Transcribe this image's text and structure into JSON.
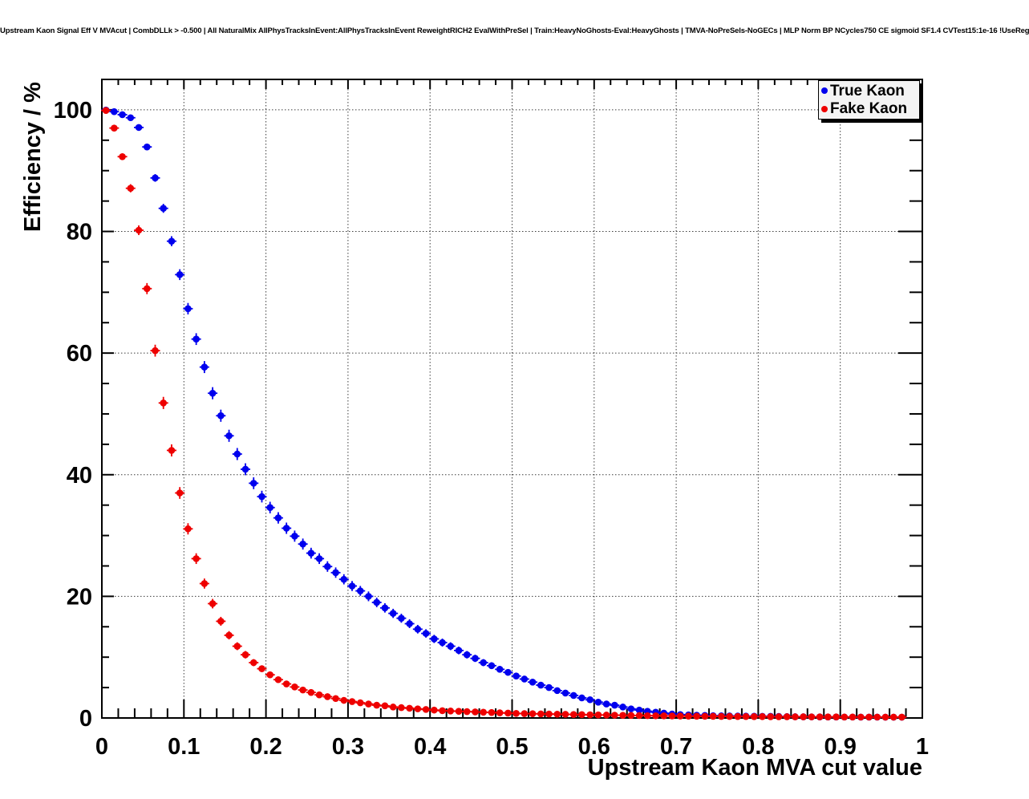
{
  "title": "Upstream Kaon Signal Eff V MVAcut | CombDLLk > -0.500 | All NaturalMix AllPhysTracksInEvent:AllPhysTracksInEvent ReweightRICH2 EvalWithPreSel | Train:HeavyNoGhosts-Eval:HeavyGhosts | TMVA-NoPreSels-NoGECs | MLP Norm BP NCycles750 CE sigmoid SF1.4 CVTest15:1e-16 !UseReg",
  "chart_data": {
    "type": "scatter",
    "title": "Upstream Kaon Signal Eff V MVAcut | CombDLLk > -0.500 | All NaturalMix AllPhysTracksInEvent:AllPhysTracksInEvent ReweightRICH2 EvalWithPreSel | Train:HeavyNoGhosts-Eval:HeavyGhosts | TMVA-NoPreSels-NoGECs | MLP Norm BP NCycles750 CE sigmoid SF1.4 CVTest15:1e-16 !UseReg",
    "xlabel": "Upstream Kaon MVA cut value",
    "ylabel": "Efficiency / %",
    "xlim": [
      0,
      1
    ],
    "ylim": [
      0,
      105
    ],
    "x_ticks": [
      0,
      0.1,
      0.2,
      0.3,
      0.4,
      0.5,
      0.6,
      0.7,
      0.8,
      0.9,
      1
    ],
    "x_tick_labels": [
      "0",
      "0.1",
      "0.2",
      "0.3",
      "0.4",
      "0.5",
      "0.6",
      "0.7",
      "0.8",
      "0.9",
      "1"
    ],
    "x_minor_step": 0.02,
    "y_ticks": [
      0,
      20,
      40,
      60,
      80,
      100
    ],
    "y_tick_labels": [
      "0",
      "20",
      "40",
      "60",
      "80",
      "100"
    ],
    "y_minor_step": 5,
    "grid": true,
    "grid_style": "dotted",
    "legend_position": "top-right",
    "x_error": 0.005,
    "series": [
      {
        "name": "True Kaon",
        "color": "#0000ee",
        "marker": "filled-circle",
        "x": [
          0.005,
          0.015,
          0.025,
          0.035,
          0.045,
          0.055,
          0.065,
          0.075,
          0.085,
          0.095,
          0.105,
          0.115,
          0.125,
          0.135,
          0.145,
          0.155,
          0.165,
          0.175,
          0.185,
          0.195,
          0.205,
          0.215,
          0.225,
          0.235,
          0.245,
          0.255,
          0.265,
          0.275,
          0.285,
          0.295,
          0.305,
          0.315,
          0.325,
          0.335,
          0.345,
          0.355,
          0.365,
          0.375,
          0.385,
          0.395,
          0.405,
          0.415,
          0.425,
          0.435,
          0.445,
          0.455,
          0.465,
          0.475,
          0.485,
          0.495,
          0.505,
          0.515,
          0.525,
          0.535,
          0.545,
          0.555,
          0.565,
          0.575,
          0.585,
          0.595,
          0.605,
          0.615,
          0.625,
          0.635,
          0.645,
          0.655,
          0.665,
          0.675,
          0.685,
          0.695,
          0.705,
          0.715,
          0.725,
          0.735,
          0.745,
          0.755,
          0.765,
          0.775,
          0.785,
          0.795,
          0.805,
          0.815,
          0.825,
          0.835,
          0.845,
          0.855,
          0.865,
          0.875,
          0.885,
          0.895,
          0.905,
          0.915,
          0.925,
          0.935,
          0.945,
          0.955,
          0.965,
          0.975
        ],
        "y": [
          99.97,
          99.7,
          99.2,
          98.7,
          97.1,
          93.9,
          88.8,
          83.8,
          78.4,
          72.9,
          67.3,
          62.3,
          57.7,
          53.4,
          49.7,
          46.4,
          43.4,
          40.9,
          38.6,
          36.4,
          34.6,
          32.9,
          31.2,
          29.9,
          28.6,
          27.1,
          26.2,
          24.9,
          23.9,
          22.8,
          21.7,
          20.9,
          20.0,
          19.0,
          18.1,
          17.2,
          16.4,
          15.5,
          14.6,
          13.9,
          13.0,
          12.4,
          11.8,
          11.1,
          10.4,
          9.8,
          9.1,
          8.6,
          8.0,
          7.5,
          6.9,
          6.4,
          5.9,
          5.4,
          5.0,
          4.5,
          4.1,
          3.7,
          3.3,
          3.0,
          2.6,
          2.3,
          2.1,
          1.8,
          1.5,
          1.3,
          1.1,
          0.95,
          0.8,
          0.65,
          0.55,
          0.5,
          0.46,
          0.42,
          0.38,
          0.36,
          0.34,
          0.32,
          0.3,
          0.29,
          0.28,
          0.27,
          0.26,
          0.22,
          0.2,
          0.19,
          0.18,
          0.17,
          0.16,
          0.16,
          0.15,
          0.15,
          0.14,
          0.14,
          0.14,
          0.13,
          0.13,
          0.13
        ]
      },
      {
        "name": "Fake Kaon",
        "color": "#ee0000",
        "marker": "filled-circle",
        "x": [
          0.005,
          0.015,
          0.025,
          0.035,
          0.045,
          0.055,
          0.065,
          0.075,
          0.085,
          0.095,
          0.105,
          0.115,
          0.125,
          0.135,
          0.145,
          0.155,
          0.165,
          0.175,
          0.185,
          0.195,
          0.205,
          0.215,
          0.225,
          0.235,
          0.245,
          0.255,
          0.265,
          0.275,
          0.285,
          0.295,
          0.305,
          0.315,
          0.325,
          0.335,
          0.345,
          0.355,
          0.365,
          0.375,
          0.385,
          0.395,
          0.405,
          0.415,
          0.425,
          0.435,
          0.445,
          0.455,
          0.465,
          0.475,
          0.485,
          0.495,
          0.505,
          0.515,
          0.525,
          0.535,
          0.545,
          0.555,
          0.565,
          0.575,
          0.585,
          0.595,
          0.605,
          0.615,
          0.625,
          0.635,
          0.645,
          0.655,
          0.665,
          0.675,
          0.685,
          0.695,
          0.705,
          0.715,
          0.725,
          0.735,
          0.745,
          0.755,
          0.765,
          0.775,
          0.785,
          0.795,
          0.805,
          0.815,
          0.825,
          0.835,
          0.845,
          0.855,
          0.865,
          0.875,
          0.885,
          0.895,
          0.905,
          0.915,
          0.925,
          0.935,
          0.945,
          0.955,
          0.965,
          0.975
        ],
        "y": [
          99.9,
          97.0,
          92.3,
          87.1,
          80.2,
          70.6,
          60.4,
          51.8,
          44.0,
          37.0,
          31.1,
          26.2,
          22.1,
          18.8,
          15.9,
          13.6,
          11.8,
          10.4,
          9.1,
          8.1,
          7.1,
          6.3,
          5.6,
          5.1,
          4.6,
          4.2,
          3.8,
          3.5,
          3.2,
          2.9,
          2.7,
          2.5,
          2.3,
          2.1,
          2.0,
          1.8,
          1.7,
          1.6,
          1.5,
          1.4,
          1.3,
          1.2,
          1.15,
          1.1,
          1.05,
          1.0,
          0.95,
          0.9,
          0.85,
          0.8,
          0.75,
          0.72,
          0.7,
          0.67,
          0.65,
          0.62,
          0.6,
          0.57,
          0.55,
          0.52,
          0.5,
          0.48,
          0.46,
          0.44,
          0.42,
          0.4,
          0.38,
          0.36,
          0.35,
          0.33,
          0.32,
          0.3,
          0.29,
          0.28,
          0.27,
          0.26,
          0.25,
          0.24,
          0.23,
          0.22,
          0.22,
          0.21,
          0.2,
          0.2,
          0.19,
          0.19,
          0.18,
          0.18,
          0.17,
          0.17,
          0.16,
          0.16,
          0.15,
          0.15,
          0.15,
          0.14,
          0.14,
          0.14
        ]
      }
    ]
  },
  "legend": {
    "entries": [
      {
        "label": "True Kaon",
        "color": "#0000ee"
      },
      {
        "label": "Fake Kaon",
        "color": "#ee0000"
      }
    ]
  }
}
